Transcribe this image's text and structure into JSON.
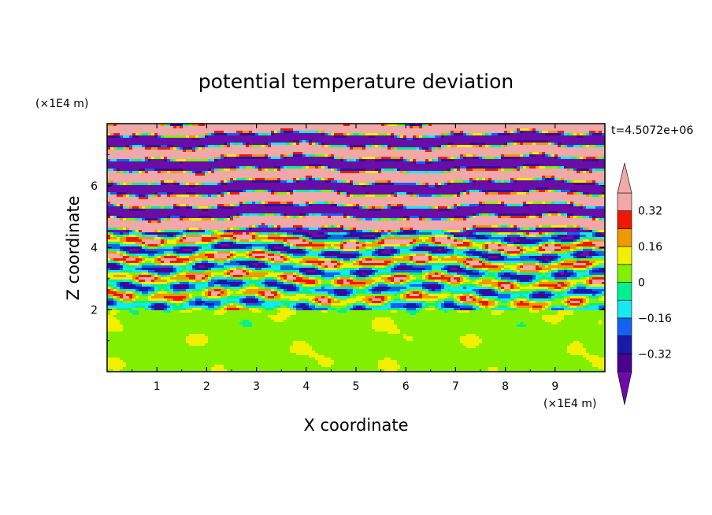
{
  "chart_data": {
    "type": "heatmap",
    "title": "potential temperature deviation",
    "xlabel": "X coordinate",
    "ylabel": "Z coordinate",
    "x_unit": "(×1E4 m)",
    "y_unit": "(×1E4 m)",
    "time_label": "t=4.5072e+06",
    "xlim": [
      0,
      10
    ],
    "ylim": [
      0,
      8
    ],
    "x_ticks": [
      1,
      2,
      3,
      4,
      5,
      6,
      7,
      8,
      9
    ],
    "y_ticks": [
      2,
      4,
      6
    ],
    "x_tick_labels": [
      "1",
      "2",
      "3",
      "4",
      "5",
      "6",
      "7",
      "8",
      "9"
    ],
    "y_tick_labels": [
      "2",
      "4",
      "6"
    ],
    "colorbar": {
      "levels": [
        -0.4,
        -0.32,
        -0.24,
        -0.16,
        -0.08,
        0,
        0.08,
        0.16,
        0.24,
        0.32,
        0.4
      ],
      "colors": [
        "#6a0da8",
        "#4b0090",
        "#1a1aa8",
        "#1560f0",
        "#18e8f0",
        "#00f090",
        "#80f000",
        "#f0f000",
        "#f09800",
        "#f01800",
        "#f0a8a8",
        "#f0a8a8"
      ],
      "tick_values": [
        0.32,
        0.16,
        0,
        -0.16,
        -0.32
      ],
      "tick_labels": [
        "0.32",
        "0.16",
        "0",
        "−0.16",
        "−0.32"
      ],
      "extend": "both"
    },
    "regions": {
      "lower_layer_range": [
        0,
        2
      ],
      "lower_layer_values_range": [
        0,
        0.08
      ],
      "mixed_layer_range": [
        2,
        4.5
      ],
      "mixed_layer_values_range": [
        -0.32,
        0.32
      ],
      "upper_layer_range": [
        4.5,
        8
      ],
      "upper_layer_values": "alternating bands of > 0.4 and < -0.4"
    }
  }
}
